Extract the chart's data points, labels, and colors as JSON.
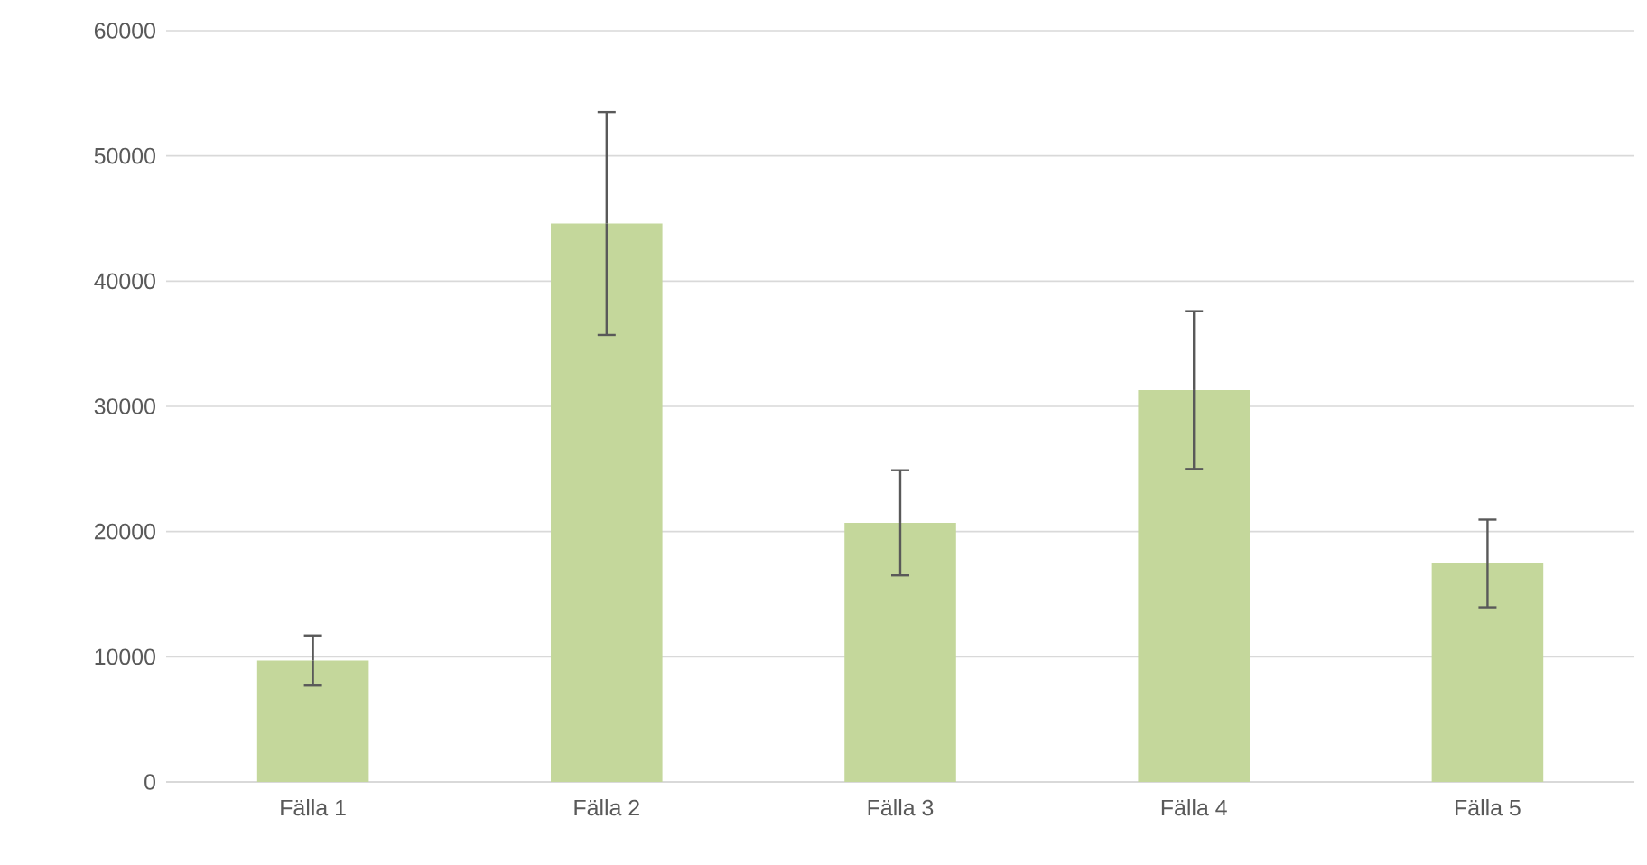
{
  "chart_data": {
    "type": "bar",
    "categories": [
      "Fälla 1",
      "Fälla 2",
      "Fälla 3",
      "Fälla 4",
      "Fälla 5"
    ],
    "values": [
      9700,
      44600,
      20700,
      31300,
      17450
    ],
    "errors": [
      2000,
      8900,
      4200,
      6300,
      3500
    ],
    "color": "#c4d79b",
    "ylim": [
      0,
      60000
    ],
    "yticks": [
      0,
      10000,
      20000,
      30000,
      40000,
      50000,
      60000
    ],
    "grid": "y"
  }
}
